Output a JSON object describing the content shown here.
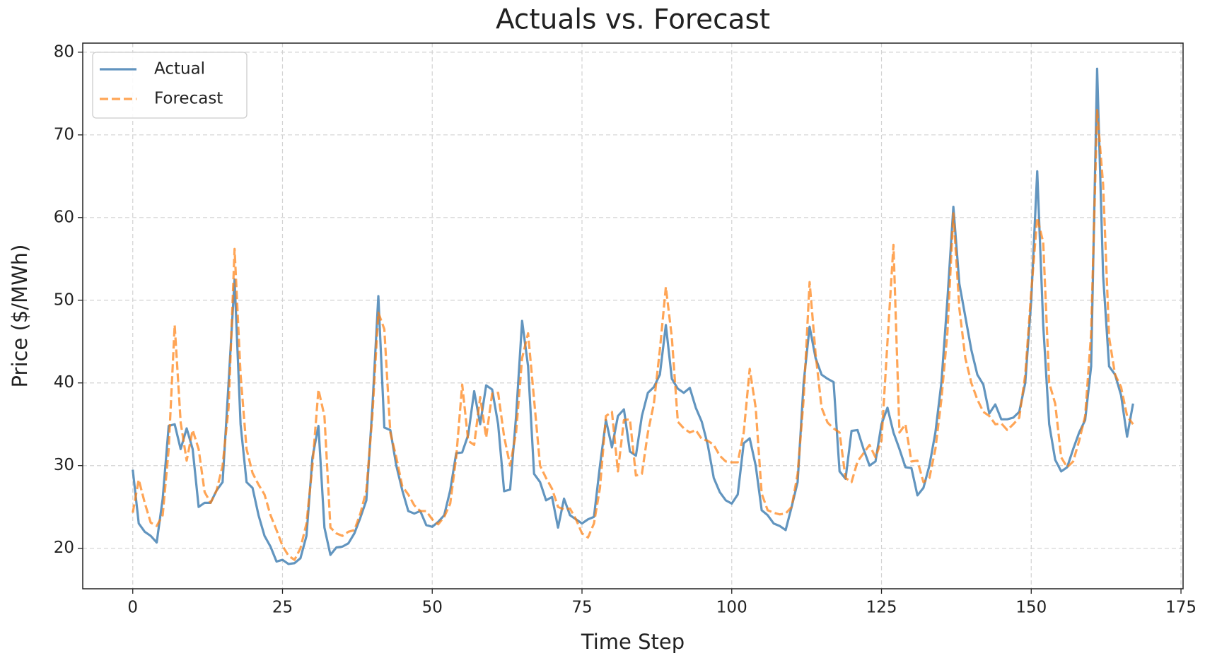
{
  "chart_data": {
    "type": "line",
    "title": "Actuals vs. Forecast",
    "xlabel": "Time Step",
    "ylabel": "Price ($/MWh)",
    "x": [
      0,
      1,
      2,
      3,
      4,
      5,
      6,
      7,
      8,
      9,
      10,
      11,
      12,
      13,
      14,
      15,
      16,
      17,
      18,
      19,
      20,
      21,
      22,
      23,
      24,
      25,
      26,
      27,
      28,
      29,
      30,
      31,
      32,
      33,
      34,
      35,
      36,
      37,
      38,
      39,
      40,
      41,
      42,
      43,
      44,
      45,
      46,
      47,
      48,
      49,
      50,
      51,
      52,
      53,
      54,
      55,
      56,
      57,
      58,
      59,
      60,
      61,
      62,
      63,
      64,
      65,
      66,
      67,
      68,
      69,
      70,
      71,
      72,
      73,
      74,
      75,
      76,
      77,
      78,
      79,
      80,
      81,
      82,
      83,
      84,
      85,
      86,
      87,
      88,
      89,
      90,
      91,
      92,
      93,
      94,
      95,
      96,
      97,
      98,
      99,
      100,
      101,
      102,
      103,
      104,
      105,
      106,
      107,
      108,
      109,
      110,
      111,
      112,
      113,
      114,
      115,
      116,
      117,
      118,
      119,
      120,
      121,
      122,
      123,
      124,
      125,
      126,
      127,
      128,
      129,
      130,
      131,
      132,
      133,
      134,
      135,
      136,
      137,
      138,
      139,
      140,
      141,
      142,
      143,
      144,
      145,
      146,
      147,
      148,
      149,
      150,
      151,
      152,
      153,
      154,
      155,
      156,
      157,
      158,
      159,
      160,
      161,
      162,
      163,
      164,
      165,
      166,
      167
    ],
    "series": [
      {
        "name": "Actual",
        "color": "#4682b4",
        "dash": false,
        "values": [
          29.5,
          23,
          22,
          21.5,
          20.7,
          26,
          34.8,
          35,
          32,
          34.5,
          32,
          25,
          25.5,
          25.5,
          27,
          28,
          40,
          52.5,
          35,
          28,
          27.3,
          24,
          21.5,
          20.2,
          18.4,
          18.6,
          18.1,
          18.2,
          18.8,
          21.5,
          31,
          34.8,
          22.5,
          19.2,
          20.1,
          20.2,
          20.6,
          21.8,
          23.7,
          25.8,
          37,
          50.5,
          34.6,
          34.3,
          30,
          27,
          24.5,
          24.2,
          24.5,
          22.8,
          22.6,
          23.2,
          24,
          27,
          31.5,
          31.6,
          33.7,
          39,
          35,
          39.7,
          39.2,
          35,
          26.9,
          27.1,
          36,
          47.5,
          42,
          29,
          28,
          25.8,
          26.2,
          22.5,
          26,
          24,
          23.5,
          23,
          23.5,
          23.8,
          30,
          35.5,
          32.2,
          36,
          36.8,
          31.7,
          31.2,
          36,
          38.8,
          39.5,
          41,
          47,
          40.5,
          39.3,
          38.8,
          39.4,
          37,
          35.3,
          32.5,
          28.5,
          26.8,
          25.8,
          25.4,
          26.5,
          32.7,
          33.3,
          30,
          24.6,
          24,
          23,
          22.7,
          22.2,
          25,
          28,
          40,
          46.8,
          43,
          41,
          40.5,
          40.1,
          29.3,
          28.4,
          34.2,
          34.3,
          32,
          30,
          30.5,
          35,
          37,
          34,
          32,
          29.8,
          29.7,
          26.4,
          27.3,
          30,
          34,
          40,
          50,
          61.3,
          52,
          48,
          44,
          41,
          39.8,
          36.3,
          37.4,
          35.6,
          35.6,
          35.8,
          36.5,
          40,
          50,
          65.6,
          47,
          35,
          30.7,
          29.3,
          29.8,
          32,
          34,
          35.5,
          42,
          78,
          53,
          42,
          41,
          38.5,
          33.5,
          37.5
        ]
      },
      {
        "name": "Forecast",
        "color": "#ff7f0e",
        "dash": true,
        "values": [
          24.3,
          28.3,
          25.5,
          23.1,
          22.7,
          24,
          32,
          47,
          35.2,
          30.6,
          34.3,
          32,
          26.8,
          25.5,
          27,
          30,
          37,
          56.2,
          41,
          32,
          29.1,
          27.7,
          26.5,
          24,
          22.2,
          20.3,
          19.1,
          18.6,
          20,
          23,
          30,
          39.2,
          36,
          22.5,
          21.8,
          21.5,
          22,
          22.2,
          24.2,
          27,
          36,
          48.5,
          46.5,
          34,
          31,
          27.5,
          26.5,
          25.2,
          24.5,
          24.5,
          23.5,
          22.9,
          23.8,
          25.4,
          31,
          39.8,
          33,
          32.5,
          38.3,
          33.4,
          38.7,
          38.8,
          33.5,
          30,
          34,
          43,
          46,
          38,
          30,
          28.5,
          27.2,
          25,
          24.7,
          24.8,
          23.5,
          21.8,
          21.3,
          23,
          27.3,
          36,
          36.5,
          29.3,
          35.5,
          35.6,
          28.8,
          29,
          34,
          37.5,
          44,
          51.6,
          45.5,
          35.3,
          34.5,
          34,
          34.3,
          33.2,
          33,
          32.5,
          31.2,
          30.5,
          30.4,
          30.4,
          34,
          41.7,
          37,
          26.6,
          24.6,
          24.3,
          24.1,
          24.2,
          25,
          29,
          38,
          52.2,
          43.5,
          37,
          35.2,
          34.5,
          34,
          28.5,
          28,
          30.5,
          31.5,
          32.5,
          31,
          33,
          45,
          56.7,
          34,
          35,
          30.5,
          30.6,
          28,
          28.5,
          32,
          38,
          46,
          60.5,
          49,
          43,
          40,
          38,
          36.5,
          36,
          35,
          35.1,
          34.3,
          35,
          35.8,
          41,
          51,
          60,
          57,
          40,
          37.5,
          31,
          29.8,
          30.5,
          33,
          36,
          46,
          73,
          64,
          45.5,
          41,
          39.5,
          36,
          35
        ]
      }
    ],
    "xlim": [
      -8.35,
      175.35
    ],
    "xticks": [
      0,
      25,
      50,
      75,
      100,
      125,
      150,
      175
    ],
    "ylim": [
      15.1,
      81.1
    ],
    "yticks": [
      20,
      30,
      40,
      50,
      60,
      70,
      80
    ],
    "grid": true,
    "legend": "upper left"
  }
}
